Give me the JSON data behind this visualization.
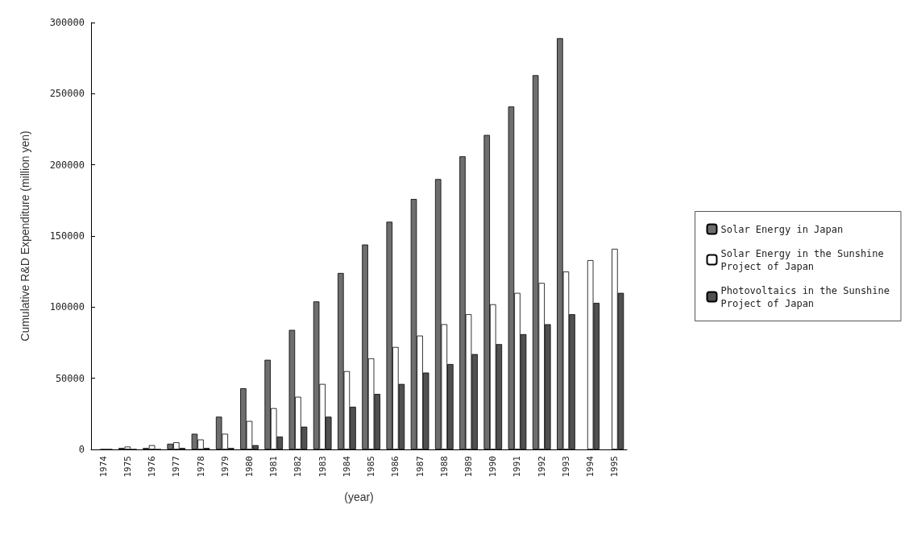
{
  "chart_data": {
    "type": "bar",
    "xlabel": "(year)",
    "ylabel": "Cumulative R&D Expenditure (million yen)",
    "categories": [
      "1974",
      "1975",
      "1976",
      "1977",
      "1978",
      "1979",
      "1980",
      "1981",
      "1982",
      "1983",
      "1984",
      "1985",
      "1986",
      "1987",
      "1988",
      "1989",
      "1990",
      "1991",
      "1992",
      "1993",
      "1994",
      "1995"
    ],
    "series": [
      {
        "name": "Solar Energy in Japan",
        "color": "#6e6e6e",
        "values": [
          null,
          1000,
          1000,
          4000,
          11000,
          23000,
          43000,
          63000,
          84000,
          104000,
          124000,
          144000,
          160000,
          176000,
          190000,
          206000,
          221000,
          241000,
          263000,
          289000,
          null,
          null
        ]
      },
      {
        "name": "Solar Energy in the Sunshine Project of Japan",
        "color": "#ffffff",
        "values": [
          0,
          2000,
          3000,
          5000,
          7000,
          11000,
          20000,
          29000,
          37000,
          46000,
          55000,
          64000,
          72000,
          80000,
          88000,
          95000,
          102000,
          110000,
          117000,
          125000,
          133000,
          141000
        ]
      },
      {
        "name": "Photovoltaics in the Sunshine Project of Japan",
        "color": "#505050",
        "values": [
          0,
          0,
          0,
          1000,
          1000,
          1000,
          3000,
          9000,
          16000,
          23000,
          30000,
          39000,
          46000,
          54000,
          60000,
          67000,
          74000,
          81000,
          88000,
          95000,
          103000,
          110000
        ]
      }
    ],
    "ylim": [
      0,
      300000
    ],
    "yticks": [
      0,
      50000,
      100000,
      150000,
      200000,
      250000,
      300000
    ],
    "grid": false,
    "legend": "right"
  }
}
